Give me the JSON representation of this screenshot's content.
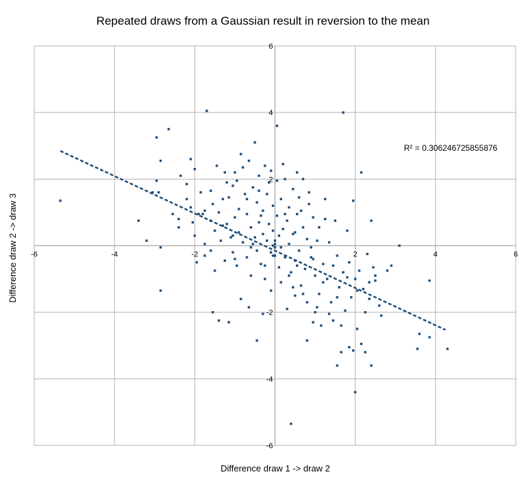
{
  "chart_data": {
    "type": "scatter",
    "title": "Repeated draws from a Gaussian result in reversion to the mean",
    "xlabel": "Difference draw 1 -> draw 2",
    "ylabel": "Difference draw 2 -> draw 3",
    "xlim": [
      -6,
      6
    ],
    "ylim": [
      -6,
      6
    ],
    "x_ticks": [
      -6,
      -4,
      -2,
      0,
      2,
      4,
      6
    ],
    "y_ticks": [
      -6,
      -4,
      -2,
      2,
      4,
      6
    ],
    "x_tick_labels": [
      "-6",
      "-4",
      "-2",
      "",
      "2",
      "4",
      "6"
    ],
    "y_tick_labels": [
      "-6",
      "-4",
      "-2",
      "2",
      "4",
      "6"
    ],
    "grid": true,
    "legend": "none",
    "marker_color": "#1f4e79",
    "trendline_color": "#1f4e79",
    "r_squared_label": "R² = 0.306246725855876",
    "trendline": {
      "slope": -0.56,
      "intercept": -0.15,
      "x_range": [
        -5.35,
        4.25
      ]
    },
    "points": [
      [
        -5.35,
        1.35
      ],
      [
        -3.4,
        0.75
      ],
      [
        -3.2,
        0.15
      ],
      [
        -2.95,
        1.95
      ],
      [
        -2.9,
        1.6
      ],
      [
        -2.95,
        3.25
      ],
      [
        -2.85,
        2.55
      ],
      [
        -2.65,
        3.5
      ],
      [
        -2.85,
        -0.05
      ],
      [
        -2.85,
        -1.35
      ],
      [
        -2.55,
        0.95
      ],
      [
        -2.4,
        0.55
      ],
      [
        -2.35,
        2.1
      ],
      [
        -2.2,
        1.4
      ],
      [
        -2.1,
        1.15
      ],
      [
        -2.05,
        0.7
      ],
      [
        -2.0,
        0.3
      ],
      [
        -2.1,
        2.6
      ],
      [
        -2.0,
        2.3
      ],
      [
        -1.95,
        -0.5
      ],
      [
        -1.85,
        1.6
      ],
      [
        -1.8,
        0.95
      ],
      [
        -1.75,
        0.05
      ],
      [
        -1.75,
        -0.3
      ],
      [
        -1.6,
        1.65
      ],
      [
        -1.6,
        0.75
      ],
      [
        -1.55,
        1.25
      ],
      [
        -1.5,
        0.45
      ],
      [
        -1.5,
        -0.75
      ],
      [
        -1.45,
        2.4
      ],
      [
        -1.4,
        1.0
      ],
      [
        -1.35,
        0.15
      ],
      [
        -1.3,
        0.6
      ],
      [
        -1.25,
        -0.45
      ],
      [
        -1.2,
        1.9
      ],
      [
        -1.15,
        1.45
      ],
      [
        -1.1,
        0.25
      ],
      [
        -1.05,
        -0.2
      ],
      [
        -1.0,
        2.2
      ],
      [
        -1.0,
        0.85
      ],
      [
        -0.95,
        -0.6
      ],
      [
        -0.9,
        1.1
      ],
      [
        -0.9,
        0.4
      ],
      [
        -0.85,
        2.75
      ],
      [
        -0.8,
        0.1
      ],
      [
        -0.75,
        1.55
      ],
      [
        -0.7,
        -0.35
      ],
      [
        -0.7,
        0.95
      ],
      [
        -0.65,
        2.55
      ],
      [
        -0.6,
        0.55
      ],
      [
        -0.6,
        -0.9
      ],
      [
        -0.55,
        1.75
      ],
      [
        -0.5,
        3.1
      ],
      [
        -0.5,
        0.25
      ],
      [
        -0.45,
        -0.15
      ],
      [
        -0.45,
        1.3
      ],
      [
        -0.4,
        2.1
      ],
      [
        -0.4,
        0.7
      ],
      [
        -0.35,
        -0.55
      ],
      [
        -0.3,
        1.05
      ],
      [
        -0.3,
        0.35
      ],
      [
        -0.25,
        2.4
      ],
      [
        -0.25,
        -1.0
      ],
      [
        -0.2,
        0.15
      ],
      [
        -0.2,
        1.55
      ],
      [
        -0.15,
        0.65
      ],
      [
        -0.1,
        -0.2
      ],
      [
        -0.1,
        2.25
      ],
      [
        -0.05,
        1.2
      ],
      [
        -0.05,
        0.45
      ],
      [
        0.0,
        -0.05
      ],
      [
        0.0,
        0.15
      ],
      [
        0.0,
        -0.3
      ],
      [
        0.05,
        0.9
      ],
      [
        0.05,
        1.95
      ],
      [
        0.1,
        -0.65
      ],
      [
        0.1,
        0.3
      ],
      [
        0.15,
        1.4
      ],
      [
        0.15,
        -1.1
      ],
      [
        0.2,
        0.5
      ],
      [
        0.25,
        2.0
      ],
      [
        0.25,
        -0.35
      ],
      [
        0.3,
        0.75
      ],
      [
        0.3,
        -1.9
      ],
      [
        0.35,
        1.15
      ],
      [
        0.35,
        0.05
      ],
      [
        0.4,
        -0.8
      ],
      [
        0.45,
        1.7
      ],
      [
        0.45,
        0.35
      ],
      [
        0.5,
        -0.45
      ],
      [
        0.5,
        -1.5
      ],
      [
        0.55,
        0.95
      ],
      [
        0.6,
        1.45
      ],
      [
        0.6,
        -0.15
      ],
      [
        0.65,
        -1.2
      ],
      [
        0.7,
        0.55
      ],
      [
        0.7,
        2.0
      ],
      [
        0.75,
        -0.7
      ],
      [
        0.8,
        -1.7
      ],
      [
        0.8,
        0.2
      ],
      [
        0.85,
        1.25
      ],
      [
        0.9,
        -0.35
      ],
      [
        0.95,
        -2.3
      ],
      [
        0.95,
        0.85
      ],
      [
        1.0,
        -0.9
      ],
      [
        1.05,
        0.15
      ],
      [
        1.1,
        -1.45
      ],
      [
        1.1,
        0.55
      ],
      [
        1.15,
        -2.4
      ],
      [
        1.2,
        -0.55
      ],
      [
        1.25,
        1.4
      ],
      [
        1.3,
        -1.0
      ],
      [
        1.35,
        0.1
      ],
      [
        1.4,
        -1.7
      ],
      [
        1.45,
        -2.25
      ],
      [
        1.5,
        0.75
      ],
      [
        1.55,
        -0.3
      ],
      [
        1.6,
        -1.25
      ],
      [
        1.65,
        -3.2
      ],
      [
        1.7,
        -0.8
      ],
      [
        1.75,
        -1.95
      ],
      [
        1.8,
        0.45
      ],
      [
        1.85,
        -0.5
      ],
      [
        1.9,
        -1.55
      ],
      [
        1.95,
        1.35
      ],
      [
        1.95,
        -3.15
      ],
      [
        2.0,
        -1.0
      ],
      [
        2.05,
        -2.5
      ],
      [
        2.1,
        -0.75
      ],
      [
        2.15,
        2.2
      ],
      [
        2.2,
        -1.3
      ],
      [
        2.25,
        -2.0
      ],
      [
        2.3,
        -0.25
      ],
      [
        2.35,
        -1.6
      ],
      [
        2.4,
        0.75
      ],
      [
        2.45,
        -0.65
      ],
      [
        2.5,
        -1.05
      ],
      [
        2.6,
        -1.8
      ],
      [
        2.65,
        -2.1
      ],
      [
        2.8,
        -0.75
      ],
      [
        2.9,
        -0.6
      ],
      [
        3.1,
        0.0
      ],
      [
        2.0,
        -4.4
      ],
      [
        0.4,
        -5.35
      ],
      [
        1.55,
        -3.6
      ],
      [
        2.4,
        -3.6
      ],
      [
        1.7,
        4.0
      ],
      [
        0.05,
        3.6
      ],
      [
        3.6,
        -2.65
      ],
      [
        3.85,
        -1.05
      ],
      [
        3.85,
        -2.75
      ],
      [
        4.3,
        -3.1
      ],
      [
        3.55,
        -3.1
      ],
      [
        -1.7,
        4.05
      ],
      [
        -1.05,
        1.8
      ],
      [
        0.55,
        2.2
      ],
      [
        1.25,
        0.8
      ],
      [
        0.9,
        -0.05
      ],
      [
        -0.35,
        0.9
      ],
      [
        0.15,
        -0.05
      ],
      [
        -0.6,
        -0.05
      ],
      [
        -0.85,
        -1.6
      ],
      [
        -1.4,
        -2.25
      ],
      [
        -1.15,
        -2.3
      ],
      [
        -0.45,
        -2.85
      ],
      [
        -0.3,
        -2.05
      ],
      [
        0.8,
        -2.85
      ],
      [
        1.35,
        -2.05
      ],
      [
        1.65,
        -2.4
      ],
      [
        1.85,
        -3.05
      ],
      [
        2.25,
        -3.2
      ],
      [
        0.65,
        1.05
      ],
      [
        -0.05,
        0.0
      ],
      [
        -0.05,
        -0.3
      ],
      [
        0.0,
        0.05
      ],
      [
        -2.4,
        0.8
      ],
      [
        -1.9,
        0.95
      ],
      [
        -1.3,
        1.4
      ],
      [
        -0.95,
        1.95
      ],
      [
        -0.55,
        0.05
      ],
      [
        0.25,
        0.95
      ],
      [
        0.5,
        0.4
      ],
      [
        0.95,
        -0.4
      ],
      [
        1.45,
        -0.6
      ],
      [
        2.05,
        -1.35
      ],
      [
        2.35,
        -1.1
      ],
      [
        2.5,
        -0.9
      ],
      [
        1.05,
        -1.85
      ],
      [
        0.55,
        -0.6
      ],
      [
        -0.15,
        1.9
      ],
      [
        -0.7,
        1.4
      ],
      [
        -1.2,
        0.65
      ],
      [
        -1.75,
        1.05
      ],
      [
        -2.2,
        1.85
      ],
      [
        -3.05,
        1.6
      ],
      [
        -1.6,
        -0.15
      ],
      [
        -1.0,
        -0.4
      ],
      [
        -0.25,
        -0.6
      ],
      [
        0.35,
        -0.9
      ],
      [
        1.2,
        -1.1
      ],
      [
        1.8,
        -0.95
      ],
      [
        -0.8,
        2.35
      ],
      [
        -1.25,
        2.2
      ],
      [
        0.2,
        2.45
      ],
      [
        0.85,
        1.6
      ],
      [
        -0.4,
        1.65
      ],
      [
        -1.05,
        0.3
      ],
      [
        0.7,
        -1.45
      ],
      [
        1.55,
        -1.55
      ],
      [
        2.15,
        -2.95
      ],
      [
        -0.65,
        -1.85
      ],
      [
        -1.55,
        -2.0
      ],
      [
        -0.1,
        -1.35
      ],
      [
        0.45,
        -1.25
      ],
      [
        1.0,
        -2.0
      ]
    ]
  }
}
